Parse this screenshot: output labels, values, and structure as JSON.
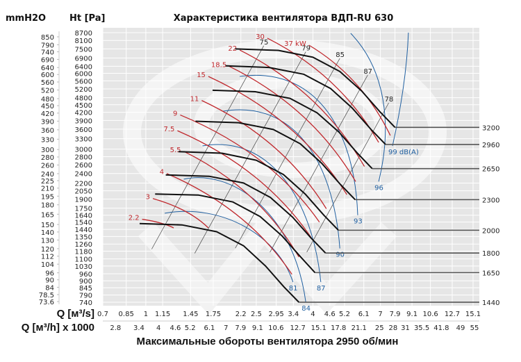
{
  "chart_data": {
    "type": "line",
    "title": "Характеристика вентилятора ВДП-RU 630",
    "subtitle": "Максимальные обороты вентилятора 2950 об/мин",
    "ylabel_left": "mmH2O",
    "ylabel_right": "Ht [Pa]",
    "xlabel": "Q [м³/s]",
    "xlabel2": "Q [м³/h] x 1000",
    "x_scale": "log",
    "y_scale": "log",
    "xlim": [
      0.7,
      15.1
    ],
    "ylim": [
      740,
      8700
    ],
    "grid": true,
    "x_ticks": [
      "0.7",
      "0.85",
      "1",
      "1.15",
      "1.45",
      "1.75",
      "2.2",
      "2.5",
      "2.95",
      "3.4",
      "4",
      "4.6",
      "5.2",
      "6.1",
      "7",
      "7.9",
      "9.1",
      "10.6",
      "12.7",
      "15.1"
    ],
    "x2_ticks": [
      "2.8",
      "3.4",
      "4",
      "4.6",
      "5.2",
      "6.1",
      "7",
      "7.9",
      "9.1",
      "10.6",
      "12.7",
      "15.1",
      "17.8",
      "21.1",
      "25",
      "28",
      "31",
      "35.5",
      "41.8",
      "49",
      "55"
    ],
    "y_ticks_pa": [
      "8700",
      "8100",
      "7500",
      "6900",
      "6400",
      "6000",
      "5600",
      "5200",
      "4800",
      "4500",
      "4200",
      "3900",
      "3600",
      "3300",
      "3000",
      "2800",
      "2600",
      "2400",
      "2200",
      "2050",
      "1900",
      "1750",
      "1640",
      "1540",
      "1440",
      "1350",
      "1260",
      "1180",
      "1100",
      "1030",
      "960",
      "900",
      "845",
      "790",
      "740"
    ],
    "y_ticks_mmh2o": [
      "850",
      "790",
      "740",
      "690",
      "640",
      "600",
      "560",
      "520",
      "480",
      "450",
      "420",
      "390",
      "360",
      "330",
      "300",
      "280",
      "260",
      "240",
      "225",
      "210",
      "195",
      "180",
      "165",
      "150",
      "140",
      "130",
      "120",
      "112",
      "104",
      "96",
      "90",
      "84",
      "78.5",
      "73.6"
    ],
    "colors": {
      "pressure": "#111111",
      "power": "#c0282d",
      "noise": "#1f5fa0",
      "efficiency": "#444444",
      "background": "#e6e6e6",
      "grid": "#ffffff"
    },
    "pressure_curves": [
      {
        "rpm": "3200",
        "q": [
          2.1,
          3,
          4,
          5,
          6,
          7,
          7.9
        ],
        "p": [
          7500,
          7400,
          6950,
          6100,
          5100,
          4200,
          3660
        ]
      },
      {
        "rpm": "2960",
        "q": [
          1.94,
          2.78,
          3.7,
          4.63,
          5.55,
          6.48,
          7.31
        ],
        "p": [
          6420,
          6330,
          5950,
          5220,
          4360,
          3590,
          3130
        ]
      },
      {
        "rpm": "2650",
        "q": [
          1.74,
          2.48,
          3.31,
          4.14,
          4.97,
          5.8,
          6.54
        ],
        "p": [
          5140,
          5070,
          4770,
          4180,
          3500,
          2880,
          2510
        ]
      },
      {
        "rpm": "2300",
        "q": [
          1.51,
          2.16,
          2.88,
          3.6,
          4.31,
          5.03,
          5.68
        ],
        "p": [
          3870,
          3820,
          3590,
          3150,
          2630,
          2170,
          1890
        ]
      },
      {
        "rpm": "2000",
        "q": [
          1.31,
          1.88,
          2.5,
          3.13,
          3.75,
          4.38,
          4.94
        ],
        "p": [
          2930,
          2890,
          2710,
          2380,
          1990,
          1640,
          1430
        ]
      },
      {
        "rpm": "1800",
        "q": [
          1.18,
          1.69,
          2.25,
          2.81,
          3.38,
          3.94,
          4.44
        ],
        "p": [
          2370,
          2340,
          2200,
          1930,
          1610,
          1330,
          1160
        ]
      },
      {
        "rpm": "1650",
        "q": [
          1.08,
          1.55,
          2.06,
          2.58,
          3.09,
          3.61,
          4.07
        ],
        "p": [
          1990,
          1970,
          1850,
          1620,
          1360,
          1120,
          970
        ]
      },
      {
        "rpm": "1440",
        "q": [
          0.95,
          1.35,
          1.8,
          2.25,
          2.7,
          3.15,
          3.56
        ],
        "p": [
          1520,
          1500,
          1410,
          1240,
          1030,
          850,
          740
        ]
      }
    ],
    "power_lines": [
      {
        "label": "37 kW",
        "q": [
          3.87,
          7.6
        ],
        "p": [
          7760,
          3400
        ]
      },
      {
        "label": "30",
        "q": [
          2.74,
          6.9
        ],
        "p": [
          8270,
          3190
        ]
      },
      {
        "label": "22",
        "q": [
          2.18,
          6.13
        ],
        "p": [
          7420,
          2560
        ]
      },
      {
        "label": "18.5",
        "q": [
          2.0,
          5.7
        ],
        "p": [
          6390,
          2230
        ]
      },
      {
        "label": "15",
        "q": [
          1.68,
          5.3
        ],
        "p": [
          5830,
          1980
        ]
      },
      {
        "label": "11",
        "q": [
          1.59,
          4.47
        ],
        "p": [
          4680,
          1740
        ]
      },
      {
        "label": "9",
        "q": [
          1.33,
          4.22
        ],
        "p": [
          4100,
          1540
        ]
      },
      {
        "label": "7.5",
        "q": [
          1.3,
          3.99
        ],
        "p": [
          3550,
          1310
        ]
      },
      {
        "label": "5.5",
        "q": [
          1.37,
          3.56
        ],
        "p": [
          2940,
          1120
        ]
      },
      {
        "label": "4",
        "q": [
          1.19,
          3.36
        ],
        "p": [
          2400,
          955
        ]
      },
      {
        "label": "3",
        "q": [
          1.06,
          1.68
        ],
        "p": [
          1910,
          1460
        ]
      },
      {
        "label": "2.2",
        "q": [
          0.97,
          1.26
        ],
        "p": [
          1580,
          1460
        ]
      }
    ],
    "noise_curves": [
      {
        "label": "81",
        "q": [
          1.17,
          1.89,
          2.99,
          3.39
        ],
        "p": [
          1670,
          1830,
          1355,
          890
        ]
      },
      {
        "label": "84",
        "q": [
          1.37,
          2.0,
          3.39,
          3.77
        ],
        "p": [
          2280,
          2500,
          1740,
          740
        ]
      },
      {
        "label": "87",
        "q": [
          1.6,
          2.82,
          3.99,
          4.27
        ],
        "p": [
          3090,
          3440,
          1870,
          890
        ]
      },
      {
        "label": "90",
        "q": [
          1.89,
          3.39,
          4.74,
          5.0
        ],
        "p": [
          4240,
          4730,
          2720,
          1210
        ]
      },
      {
        "label": "93",
        "q": [
          2.18,
          3.99,
          5.64,
          5.8
        ],
        "p": [
          5830,
          6400,
          3740,
          1640
        ]
      },
      {
        "label": "96",
        "q": [
          5.47,
          7.3,
          7.74,
          6.9
        ],
        "p": [
          8650,
          6220,
          3740,
          2230
        ]
      },
      {
        "label": "99 dB(A)",
        "q": [
          8.83,
          8.69,
          7.74
        ],
        "p": [
          8700,
          5480,
          3090
        ]
      }
    ],
    "efficiency_lines": [
      {
        "label": "75",
        "q": [
          2.66,
          1.05
        ],
        "p": [
          7720,
          1203
        ]
      },
      {
        "label": "79",
        "q": [
          3.77,
          1.5
        ],
        "p": [
          7300,
          1157
        ]
      },
      {
        "label": "85",
        "q": [
          5.0,
          2.1
        ],
        "p": [
          6880,
          1213
        ]
      },
      {
        "label": "87",
        "q": [
          6.3,
          2.8
        ],
        "p": [
          5900,
          1168
        ]
      },
      {
        "label": "78",
        "q": [
          7.5,
          3.8
        ],
        "p": [
          4580,
          1170
        ]
      }
    ]
  }
}
